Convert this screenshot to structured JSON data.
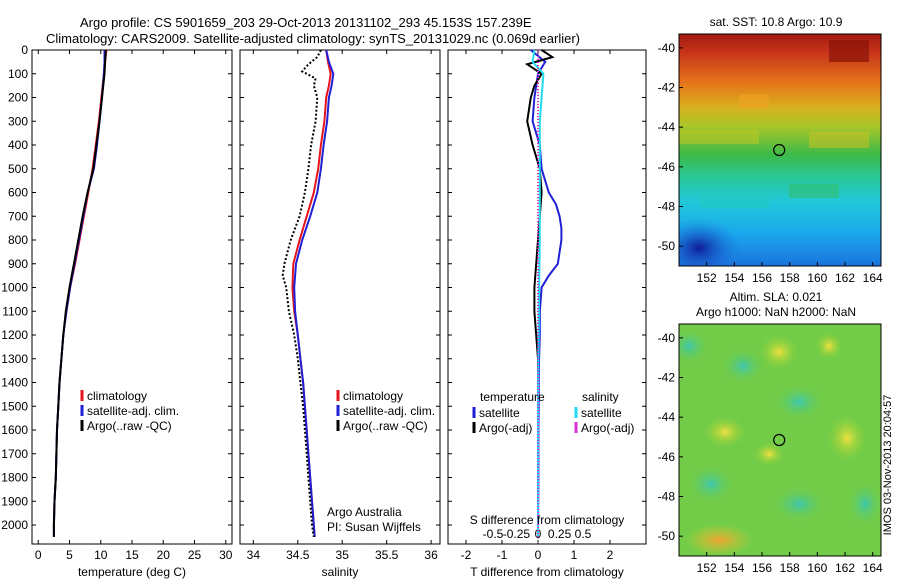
{
  "header": {
    "line1": "Argo profile: CS 5901659_203 29-Oct-2013 20131102_293 45.153S 157.239E",
    "line2": "Climatology: CARS2009. Satellite-adjusted climatology: synTS_20131029.nc (0.069d earlier)"
  },
  "side_label": "IMOS 03-Nov-2013 20:04:57",
  "colors": {
    "climatology": "#e8141c",
    "satellite": "#1f1fd6",
    "argo": "#000000",
    "salinity_satellite": "#22dcee",
    "salinity_argo": "#d633d6"
  },
  "chart_data": [
    {
      "type": "line",
      "name": "temperature-profile",
      "xlabel": "temperature (deg C)",
      "ylabel": "",
      "xlim": [
        -1,
        31
      ],
      "ylim": [
        2080,
        0
      ],
      "xticks": [
        0,
        5,
        10,
        15,
        20,
        25,
        30
      ],
      "yticks": [
        0,
        100,
        200,
        300,
        400,
        500,
        600,
        700,
        800,
        900,
        1000,
        1100,
        1200,
        1300,
        1400,
        1500,
        1600,
        1700,
        1800,
        1900,
        2000
      ],
      "legend": [
        "climatology",
        "satellite-adj. clim.",
        "Argo(..raw -QC)"
      ],
      "series": [
        {
          "name": "climatology",
          "y": [
            0,
            50,
            100,
            200,
            300,
            400,
            500,
            600,
            700,
            800,
            900,
            1000,
            1100,
            1200,
            1300,
            1400,
            1500,
            1600,
            1700,
            1800,
            1900,
            2000,
            2050
          ],
          "x": [
            10.9,
            10.7,
            10.5,
            10.1,
            9.7,
            9.2,
            8.7,
            8.0,
            7.3,
            6.6,
            5.9,
            5.1,
            4.5,
            4.0,
            3.7,
            3.4,
            3.2,
            3.0,
            2.9,
            2.8,
            2.6,
            2.5,
            2.5
          ]
        },
        {
          "name": "satellite-adj. clim.",
          "y": [
            0,
            50,
            100,
            200,
            300,
            400,
            500,
            600,
            700,
            800,
            900,
            1000,
            1100,
            1200,
            1300,
            1400,
            1500,
            1600,
            1700,
            1800,
            1900,
            2000,
            2050
          ],
          "x": [
            10.6,
            10.6,
            10.5,
            10.2,
            9.8,
            9.4,
            8.9,
            7.9,
            7.2,
            6.5,
            5.8,
            5.1,
            4.5,
            4.0,
            3.7,
            3.4,
            3.2,
            3.0,
            2.9,
            2.8,
            2.6,
            2.5,
            2.5
          ]
        },
        {
          "name": "Argo(..raw -QC)",
          "y": [
            0,
            50,
            100,
            200,
            300,
            400,
            500,
            600,
            700,
            800,
            900,
            1000,
            1100,
            1200,
            1300,
            1400,
            1500,
            1600,
            1700,
            1800,
            1900,
            2000,
            2050
          ],
          "x": [
            10.8,
            10.7,
            10.6,
            10.2,
            9.8,
            9.3,
            8.8,
            7.9,
            7.1,
            6.4,
            5.7,
            5.0,
            4.4,
            4.0,
            3.7,
            3.4,
            3.2,
            3.0,
            2.9,
            2.8,
            2.6,
            2.5,
            2.5
          ]
        }
      ]
    },
    {
      "type": "line",
      "name": "salinity-profile",
      "xlabel": "salinity",
      "ylabel": "",
      "xlim": [
        33.85,
        36.1
      ],
      "ylim": [
        2080,
        0
      ],
      "xticks": [
        34,
        34.5,
        35,
        35.5,
        36
      ],
      "legend": [
        "climatology",
        "satellite-adj. clim.",
        "Argo(..raw -QC)"
      ],
      "annotations": [
        "Argo Australia",
        "PI: Susan Wijffels"
      ],
      "series": [
        {
          "name": "climatology",
          "y": [
            0,
            50,
            100,
            150,
            200,
            300,
            400,
            500,
            600,
            700,
            800,
            900,
            1000,
            1100,
            1200,
            1300,
            1400,
            1500,
            1600,
            1700,
            1800,
            1900,
            2000,
            2050
          ],
          "x": [
            34.82,
            34.84,
            34.87,
            34.85,
            34.82,
            34.8,
            34.76,
            34.73,
            34.68,
            34.6,
            34.52,
            34.45,
            34.44,
            34.46,
            34.5,
            34.53,
            34.56,
            34.58,
            34.6,
            34.62,
            34.64,
            34.66,
            34.68,
            34.69
          ]
        },
        {
          "name": "satellite-adj. clim.",
          "y": [
            0,
            50,
            100,
            150,
            200,
            300,
            400,
            500,
            600,
            700,
            800,
            900,
            1000,
            1100,
            1200,
            1300,
            1400,
            1500,
            1600,
            1700,
            1800,
            1900,
            2000,
            2050
          ],
          "x": [
            34.82,
            34.85,
            34.9,
            34.88,
            34.85,
            34.83,
            34.79,
            34.76,
            34.72,
            34.64,
            34.55,
            34.48,
            34.46,
            34.47,
            34.5,
            34.53,
            34.56,
            34.58,
            34.6,
            34.62,
            34.64,
            34.66,
            34.68,
            34.69
          ]
        },
        {
          "name": "Argo(..raw -QC)",
          "y": [
            0,
            30,
            60,
            90,
            120,
            150,
            200,
            300,
            400,
            500,
            600,
            700,
            800,
            900,
            950,
            1000,
            1100,
            1200,
            1300,
            1400,
            1500,
            1600,
            1700,
            1800,
            1900,
            2000,
            2050
          ],
          "x": [
            34.76,
            34.72,
            34.62,
            34.55,
            34.7,
            34.68,
            34.72,
            34.7,
            34.65,
            34.62,
            34.58,
            34.52,
            34.42,
            34.35,
            34.33,
            34.37,
            34.4,
            34.46,
            34.5,
            34.53,
            34.56,
            34.58,
            34.6,
            34.62,
            34.64,
            34.66,
            34.68
          ]
        }
      ]
    },
    {
      "type": "line",
      "name": "difference-profile",
      "xlabel": "T difference from climatology",
      "xlabel2": "S difference from climatology",
      "xlim": [
        -2.5,
        3
      ],
      "ylim": [
        2080,
        0
      ],
      "xticks": [
        -2,
        -1,
        0,
        1,
        2
      ],
      "xticks_labels": [
        "-2",
        "-1",
        "0",
        "1",
        "2"
      ],
      "xticks2": [
        -1.25,
        -0.6,
        0,
        0.6,
        1.25
      ],
      "xticks2_labels": [
        "-0.5",
        "-0.25",
        "0",
        "0.25",
        "0.5"
      ],
      "legend_headers": [
        "temperature",
        "salinity"
      ],
      "legend": [
        "satellite",
        "Argo(-adj)",
        "satellite",
        "Argo(-adj)"
      ],
      "series": [
        {
          "name": "temperature satellite",
          "y": [
            0,
            50,
            100,
            200,
            300,
            400,
            500,
            600,
            650,
            700,
            750,
            800,
            850,
            900,
            950,
            1000,
            1100,
            1200,
            1300,
            1400,
            1500,
            1600,
            1800,
            2050
          ],
          "x": [
            -0.2,
            0.2,
            0.0,
            -0.1,
            -0.15,
            0.05,
            0.1,
            0.3,
            0.5,
            0.6,
            0.65,
            0.65,
            0.6,
            0.55,
            0.3,
            0.1,
            0.05,
            0.05,
            0.03,
            0.02,
            0.02,
            0.01,
            0.01,
            0.0
          ]
        },
        {
          "name": "temperature Argo(-adj)",
          "y": [
            0,
            30,
            60,
            100,
            150,
            200,
            300,
            400,
            500,
            600,
            700,
            800,
            900,
            1000,
            1100,
            1200,
            1300,
            1400,
            1500,
            1600,
            1800,
            2050
          ],
          "x": [
            0.1,
            0.4,
            -0.3,
            0.1,
            -0.1,
            -0.2,
            -0.3,
            -0.15,
            0.05,
            0.1,
            0.05,
            0.0,
            -0.05,
            -0.1,
            -0.1,
            -0.05,
            0.0,
            0.0,
            0.0,
            0.0,
            0.0,
            0.0
          ]
        },
        {
          "name": "salinity satellite",
          "y": [
            0,
            50,
            100,
            200,
            300,
            400,
            500,
            600,
            800,
            1000,
            1200,
            1400,
            1600,
            2050
          ],
          "x": [
            -0.1,
            -0.15,
            0.15,
            0.1,
            0.05,
            0.05,
            0.05,
            0.05,
            0.05,
            0.03,
            0.02,
            0.0,
            0.0,
            0.0
          ]
        },
        {
          "name": "salinity Argo(-adj)",
          "y": [
            0,
            400,
            800,
            1200,
            1600,
            2050
          ],
          "x": [
            0.0,
            0.0,
            0.0,
            0.0,
            0.0,
            0.0
          ]
        }
      ]
    },
    {
      "type": "heatmap",
      "name": "sst-map",
      "title": "sat. SST: 10.8 Argo: 10.9",
      "xlim": [
        150,
        164.6
      ],
      "ylim": [
        -51,
        -39.3
      ],
      "xticks": [
        152,
        154,
        156,
        158,
        160,
        162,
        164
      ],
      "yticks": [
        -40,
        -42,
        -44,
        -46,
        -48,
        -50
      ],
      "profile_marker": {
        "lon": 157.24,
        "lat": -45.15
      }
    },
    {
      "type": "heatmap",
      "name": "sla-map",
      "title": "Altim. SLA: 0.021",
      "subtitle": "Argo h1000: NaN h2000: NaN",
      "xlim": [
        150,
        164.6
      ],
      "ylim": [
        -51,
        -39.3
      ],
      "xticks": [
        152,
        154,
        156,
        158,
        160,
        162,
        164
      ],
      "yticks": [
        -40,
        -42,
        -44,
        -46,
        -48,
        -50
      ],
      "profile_marker": {
        "lon": 157.24,
        "lat": -45.15
      }
    }
  ]
}
